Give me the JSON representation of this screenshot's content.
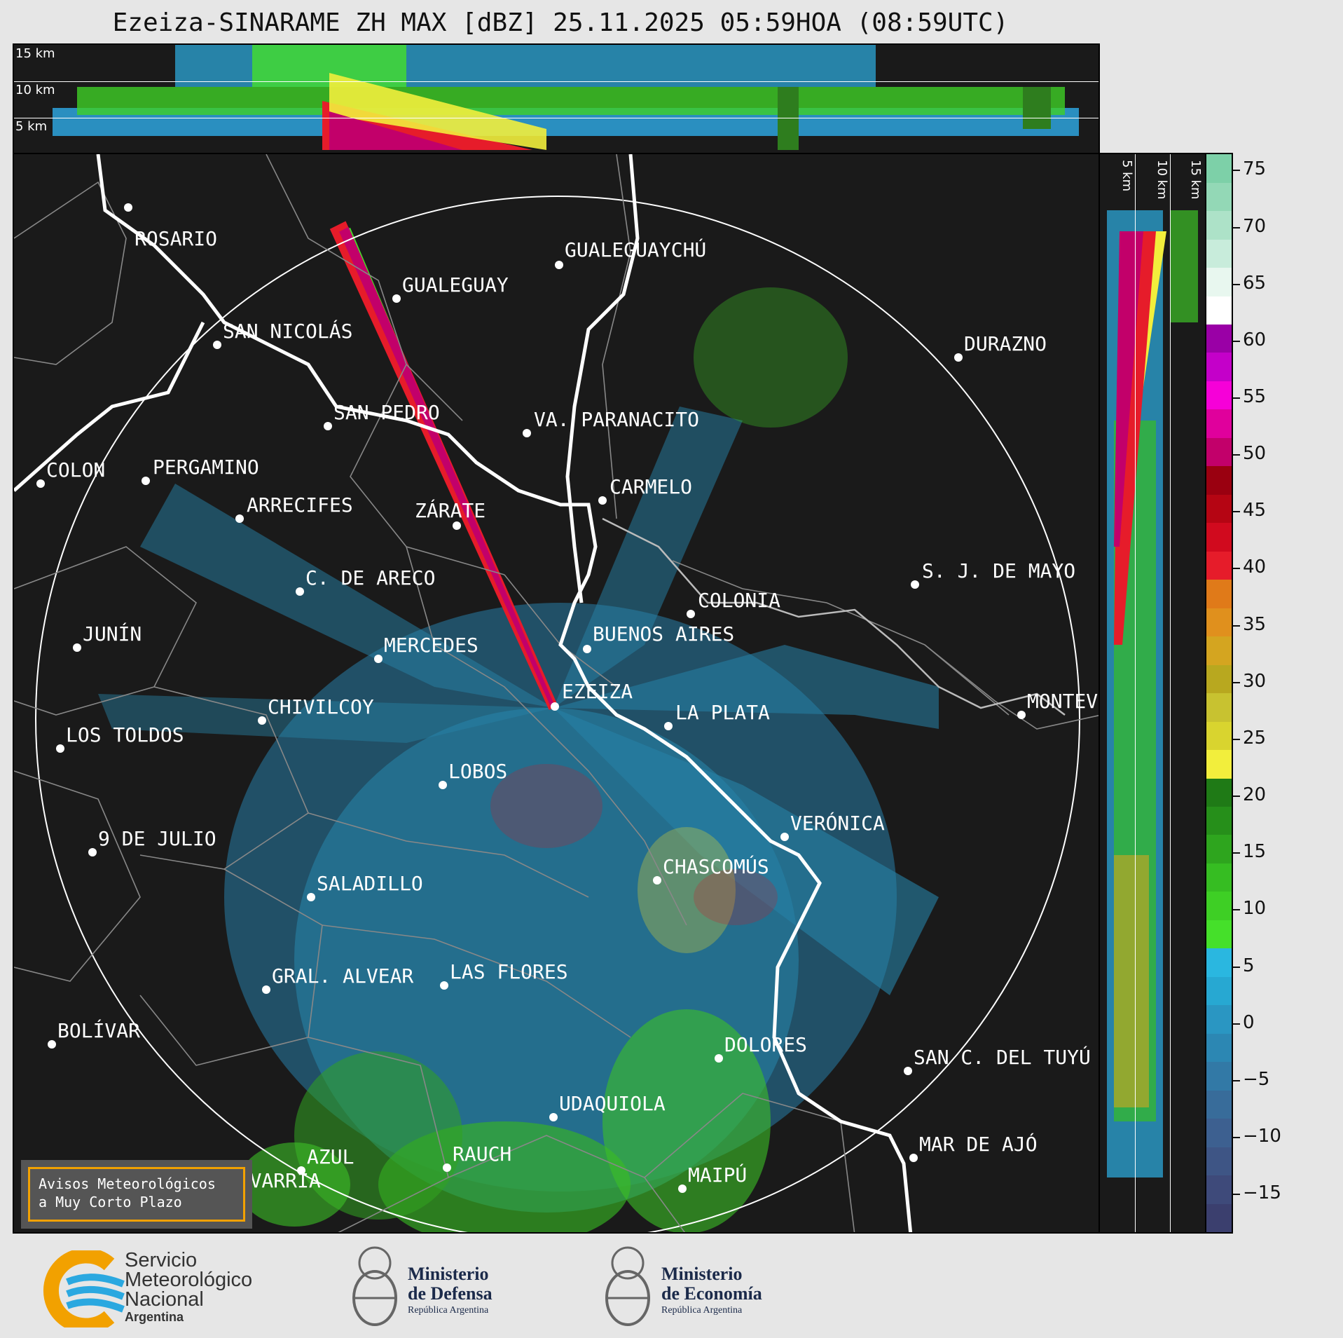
{
  "title": "Ezeiza-SINARAME ZH MAX [dBZ] 25.11.2025 05:59HOA (08:59UTC)",
  "top_panel": {
    "labels": [
      "15 km",
      "10 km",
      "5 km"
    ]
  },
  "side_panel": {
    "labels": [
      "5 km",
      "10 km",
      "15 km"
    ]
  },
  "colorbar": {
    "ticks": [
      "75",
      "70",
      "65",
      "60",
      "55",
      "50",
      "45",
      "40",
      "35",
      "30",
      "25",
      "20",
      "15",
      "10",
      "5",
      "0",
      "−5",
      "−10",
      "−15"
    ],
    "colors": [
      "#3b3f6e",
      "#3e4a7a",
      "#3e5585",
      "#3d6090",
      "#386c9a",
      "#3279a6",
      "#2c87b3",
      "#2a96c2",
      "#27a8d2",
      "#2ab7e0",
      "#45e02a",
      "#3ecf25",
      "#36bd22",
      "#2ea51e",
      "#268f1a",
      "#1f7a16",
      "#f2ee3c",
      "#d9d42f",
      "#c8c230",
      "#b8a81f",
      "#d4a520",
      "#e0901d",
      "#e07a19",
      "#e61c2a",
      "#d10a1e",
      "#b50513",
      "#9a0010",
      "#c2006a",
      "#e0009c",
      "#f600d8",
      "#c400c9",
      "#9a00a6",
      "#ffffff",
      "#e8f7ef",
      "#c8ecdb",
      "#ade2c8",
      "#93d8b6",
      "#7dd0a8"
    ]
  },
  "cities": [
    {
      "name": "ROSARIO"
    },
    {
      "name": "GUALEGUAYCHÚ"
    },
    {
      "name": "GUALEGUAY"
    },
    {
      "name": "SAN NICOLÁS"
    },
    {
      "name": "DURAZNO"
    },
    {
      "name": "SAN PEDRO"
    },
    {
      "name": "VA. PARANACITO"
    },
    {
      "name": "COLON"
    },
    {
      "name": "PERGAMINO"
    },
    {
      "name": "CARMELO"
    },
    {
      "name": "ARRECIFES"
    },
    {
      "name": "ZÁRATE"
    },
    {
      "name": "S. J. DE MAYO"
    },
    {
      "name": "C. DE ARECO"
    },
    {
      "name": "COLONIA"
    },
    {
      "name": "JUNÍN"
    },
    {
      "name": "BUENOS AIRES"
    },
    {
      "name": "MERCEDES"
    },
    {
      "name": "EZEIZA"
    },
    {
      "name": "MONTEVIDEO"
    },
    {
      "name": "CHIVILCOY"
    },
    {
      "name": "LA PLATA"
    },
    {
      "name": "LOS TOLDOS"
    },
    {
      "name": "LOBOS"
    },
    {
      "name": "VERÓNICA"
    },
    {
      "name": "9 DE JULIO"
    },
    {
      "name": "CHASCOMÚS"
    },
    {
      "name": "SALADILLO"
    },
    {
      "name": "GRAL. ALVEAR"
    },
    {
      "name": "LAS FLORES"
    },
    {
      "name": "BOLÍVAR"
    },
    {
      "name": "DOLORES"
    },
    {
      "name": "SAN C. DEL TUYÚ"
    },
    {
      "name": "UDAQUIOLA"
    },
    {
      "name": "MAR DE AJÓ"
    },
    {
      "name": "AZUL"
    },
    {
      "name": "RAUCH"
    },
    {
      "name": "OLAVARRÍA"
    },
    {
      "name": "MAIPÚ"
    }
  ],
  "notice": {
    "line1": "Avisos Meteorológicos",
    "line2": "a Muy Corto Plazo"
  },
  "footer": {
    "smn": {
      "line1": "Servicio",
      "line2": "Meteorológico",
      "line3": "Nacional",
      "line4": "Argentina"
    },
    "defensa": {
      "line1": "Ministerio",
      "line2": "de Defensa",
      "line3": "República Argentina"
    },
    "economia": {
      "line1": "Ministerio",
      "line2": "de Economía",
      "line3": "República Argentina"
    }
  },
  "palette": {
    "background": "#1a1a1a",
    "coast": "#ffffff",
    "borders": "#888888",
    "echo_low": "#2a96c2",
    "echo_mid": "#45e02a",
    "echo_high": "#d10a1e"
  }
}
